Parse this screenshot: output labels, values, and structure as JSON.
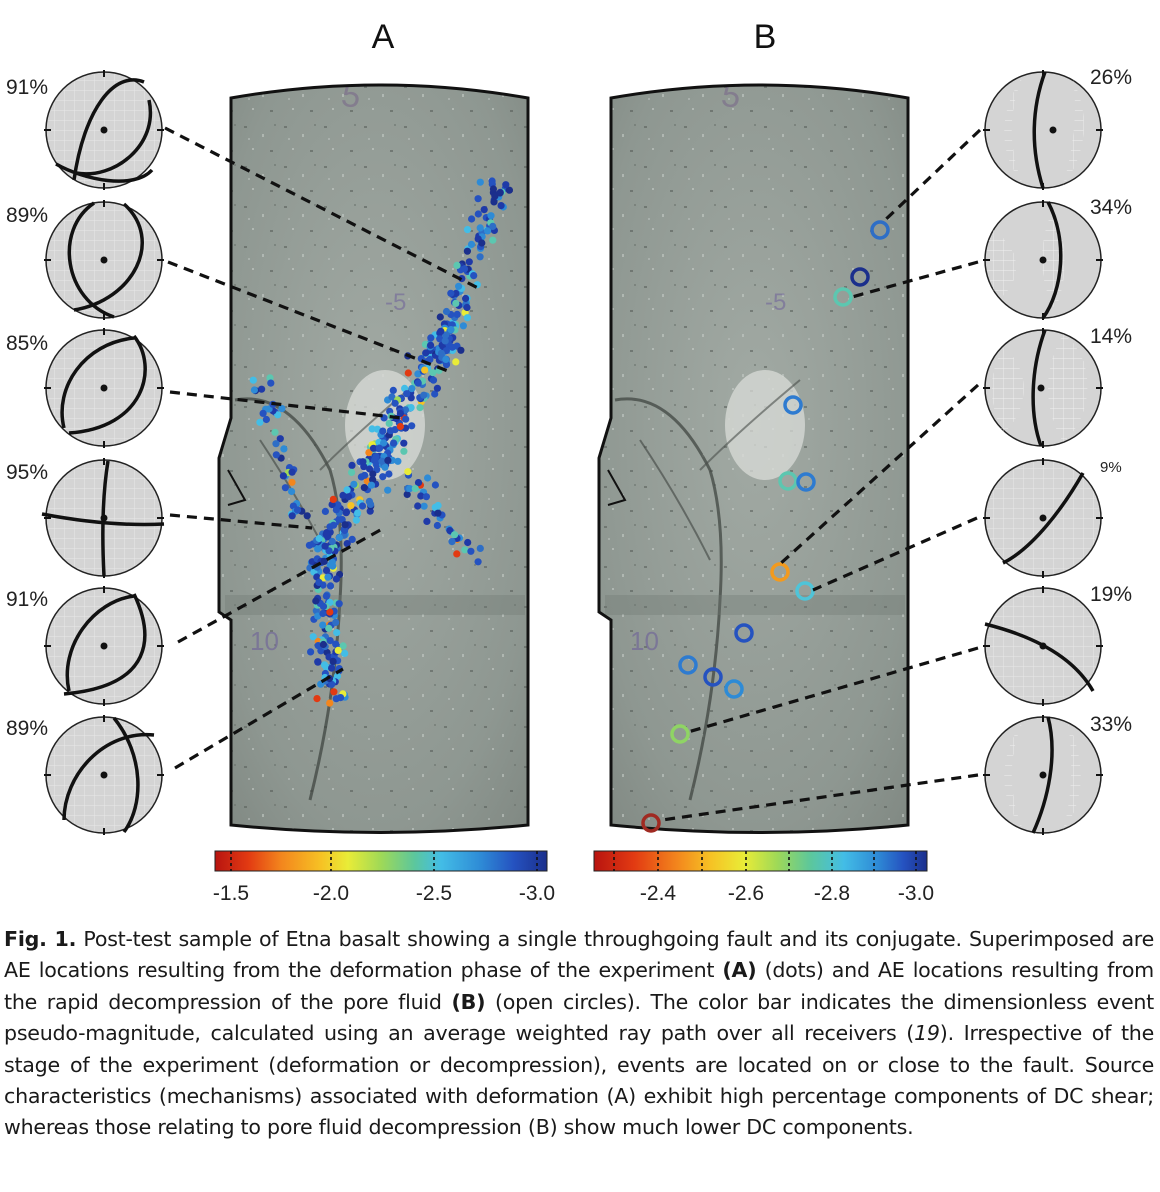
{
  "panels": [
    {
      "id": "A",
      "label": "A",
      "dc_percent": [
        "91%",
        "89%",
        "85%",
        "95%",
        "91%",
        "89%"
      ],
      "colorbar_ticks": [
        "-1.5",
        "-2.0",
        "-2.5",
        "-3.0"
      ]
    },
    {
      "id": "B",
      "label": "B",
      "dc_percent": [
        "26%",
        "34%",
        "14%",
        "9%",
        "19%",
        "33%"
      ],
      "colorbar_ticks": [
        "-2.4",
        "-2.6",
        "-2.8",
        "-3.0"
      ]
    }
  ],
  "colors": {
    "rock": "#8d9690",
    "rock_light": "#a7afa9",
    "outline": "#111111",
    "stereonet_fill": "#d4d4d4",
    "colormap": [
      "#b81410",
      "#e23a12",
      "#f3861d",
      "#f6c224",
      "#e9ec37",
      "#9fd957",
      "#5cc79c",
      "#43bde6",
      "#2e8bd6",
      "#2552c0",
      "#1b2f8c"
    ]
  },
  "caption": {
    "label": "Fig. 1.",
    "parts": [
      " Post-test sample of Etna basalt showing a single throughgoing fault and its conjugate. Superimposed are AE locations resulting from the deformation phase of the experiment ",
      "(A)",
      " (dots) and AE locations resulting from the rapid decompression of the pore fluid ",
      "(B)",
      " (open circles). The color bar indicates the dimensionless event pseudo-magnitude, calculated using an average weighted ray path over all receivers (",
      "19",
      "). Irrespective of the stage of the experiment (deformation or decompression), events are located on or close to the fault. Source characteristics (mechanisms) associated with deformation (A) exhibit high percentage components of DC shear; whereas those relating to pore fluid decompression (B) show much lower DC components."
    ]
  }
}
